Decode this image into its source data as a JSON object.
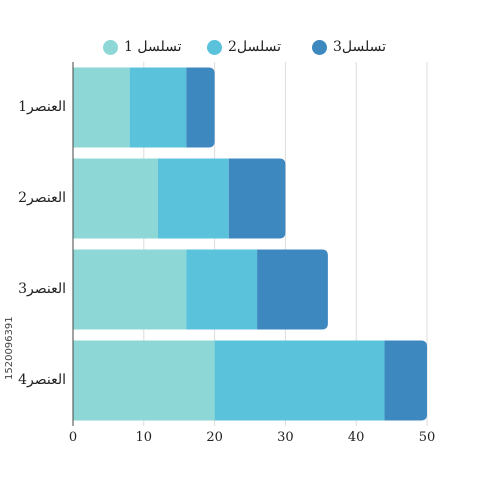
{
  "chart_data": {
    "type": "bar",
    "orientation": "horizontal",
    "stacked": true,
    "categories": [
      "العنصر1",
      "العنصر2",
      "العنصر3",
      "العنصر4"
    ],
    "series": [
      {
        "name": "تسلسل 1",
        "values": [
          8,
          12,
          16,
          20
        ],
        "color": "#8dd8d6"
      },
      {
        "name": "تسلسل2",
        "values": [
          8,
          10,
          10,
          24
        ],
        "color": "#5bc2dc"
      },
      {
        "name": "تسلسل3",
        "values": [
          4,
          8,
          10,
          6
        ],
        "color": "#3e88c0"
      }
    ],
    "xlim": [
      0,
      50
    ],
    "xticks": [
      0,
      10,
      20,
      30,
      40,
      50
    ],
    "legend_position": "top",
    "grid": true
  },
  "watermark_text": "1520096391"
}
